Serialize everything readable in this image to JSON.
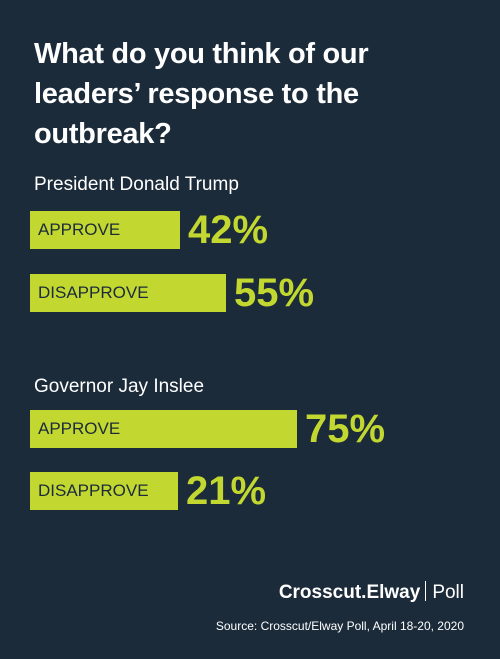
{
  "title": "What do you think of our leaders’ response to the outbreak?",
  "colors": {
    "background": "#1b2b3a",
    "bar": "#c2d730",
    "text": "#ffffff"
  },
  "chart_data": {
    "type": "bar",
    "orientation": "horizontal",
    "title": "What do you think of our leaders’ response to the outbreak?",
    "groups": [
      {
        "name": "President Donald Trump",
        "bars": [
          {
            "label": "APPROVE",
            "value": 42,
            "value_label": "42%"
          },
          {
            "label": "DISAPPROVE",
            "value": 55,
            "value_label": "55%"
          }
        ]
      },
      {
        "name": "Governor Jay Inslee",
        "bars": [
          {
            "label": "APPROVE",
            "value": 75,
            "value_label": "75%"
          },
          {
            "label": "DISAPPROVE",
            "value": 21,
            "value_label": "21%"
          }
        ]
      }
    ],
    "xlim": [
      0,
      100
    ]
  },
  "footer": {
    "brand_name": "Crosscut.Elway",
    "brand_suffix": "Poll",
    "source": "Source: Crosscut/Elway Poll, April 18-20, 2020"
  }
}
